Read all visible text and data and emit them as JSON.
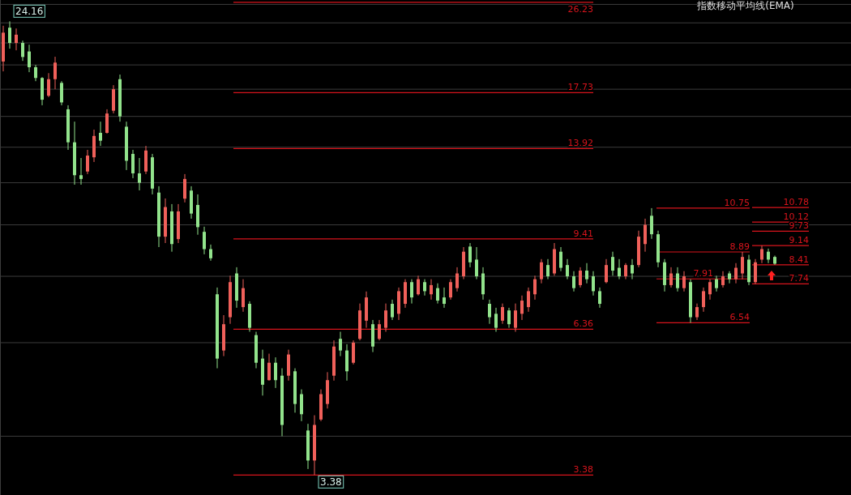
{
  "chart_data": {
    "type": "candlestick",
    "title": "指数移动平均线(EMA)",
    "categories": [
      null,
      null,
      null,
      null,
      null,
      null,
      null,
      null,
      null,
      null,
      null,
      null,
      null,
      null,
      null,
      null,
      null,
      null,
      null,
      null,
      null,
      null,
      null,
      null,
      null,
      null,
      null,
      null,
      null,
      null,
      null,
      null,
      null,
      null,
      null,
      null,
      null,
      null,
      null,
      null,
      null,
      null,
      null,
      null,
      null,
      null,
      null,
      null,
      null,
      null,
      null,
      null,
      null,
      null,
      null,
      null,
      null,
      null,
      null,
      null,
      null,
      null,
      null,
      null,
      null,
      null,
      null,
      null,
      null,
      null,
      null,
      null,
      null,
      null,
      null,
      null,
      null,
      null,
      null,
      null,
      null,
      null,
      null,
      null,
      null,
      null,
      null,
      null,
      null,
      null,
      null,
      null,
      null,
      null,
      null,
      null,
      null,
      null,
      null,
      null,
      null,
      null,
      null,
      null,
      null,
      null,
      null,
      null,
      null,
      null,
      null,
      null,
      null,
      null,
      null,
      null,
      null,
      null,
      null,
      null
    ],
    "ohlc": [
      [
        20.3,
        23.7,
        19.45,
        23.0
      ],
      [
        23.5,
        24.16,
        21.46,
        22.0
      ],
      [
        22.0,
        23.42,
        21.31,
        22.8
      ],
      [
        22.0,
        22.22,
        20.35,
        20.7
      ],
      [
        21.2,
        21.83,
        19.38,
        19.8
      ],
      [
        19.8,
        20.0,
        18.64,
        18.9
      ],
      [
        18.9,
        18.97,
        16.79,
        17.2
      ],
      [
        17.5,
        19.3,
        17.39,
        18.8
      ],
      [
        18.8,
        20.72,
        18.0,
        20.2
      ],
      [
        18.5,
        18.64,
        16.79,
        17.0
      ],
      [
        16.5,
        16.79,
        13.84,
        14.3
      ],
      [
        14.3,
        15.64,
        11.9,
        12.4
      ],
      [
        12.4,
        13.36,
        11.9,
        12.2
      ],
      [
        12.6,
        13.84,
        12.46,
        13.5
      ],
      [
        13.4,
        15.11,
        13.13,
        14.7
      ],
      [
        14.9,
        15.64,
        14.08,
        14.4
      ],
      [
        14.9,
        16.5,
        14.85,
        16.2
      ],
      [
        16.4,
        18.32,
        16.21,
        18.0
      ],
      [
        18.8,
        19.18,
        15.64,
        16.0
      ],
      [
        15.3,
        15.64,
        12.68,
        13.2
      ],
      [
        13.6,
        13.84,
        12.24,
        12.5
      ],
      [
        12.5,
        13.36,
        11.61,
        12.0
      ],
      [
        12.6,
        14.08,
        12.46,
        13.8
      ],
      [
        13.4,
        13.6,
        11.41,
        11.7
      ],
      [
        11.5,
        11.82,
        9.08,
        9.5
      ],
      [
        9.5,
        11.21,
        9.24,
        10.8
      ],
      [
        10.6,
        10.94,
        8.9,
        9.2
      ],
      [
        9.4,
        10.94,
        9.24,
        10.6
      ],
      [
        11.2,
        12.46,
        11.02,
        12.2
      ],
      [
        11.6,
        11.82,
        10.27,
        10.5
      ],
      [
        10.9,
        11.41,
        9.58,
        9.9
      ],
      [
        9.7,
        9.92,
        8.8,
        9.0
      ],
      [
        9.0,
        9.18,
        8.56,
        8.65
      ],
      [
        7.4,
        7.62,
        5.37,
        5.6
      ],
      [
        5.8,
        6.76,
        5.66,
        6.5
      ],
      [
        6.7,
        8.02,
        6.51,
        7.8
      ],
      [
        8.1,
        8.32,
        6.98,
        7.2
      ],
      [
        7.0,
        7.9,
        6.86,
        7.6
      ],
      [
        7.1,
        7.18,
        6.29,
        6.4
      ],
      [
        6.2,
        6.29,
        5.37,
        5.5
      ],
      [
        5.6,
        5.82,
        4.77,
        5.0
      ],
      [
        5.1,
        5.72,
        5.09,
        5.5
      ],
      [
        5.5,
        5.63,
        4.93,
        5.1
      ],
      [
        5.2,
        5.37,
        4.0,
        4.2
      ],
      [
        5.2,
        5.82,
        5.09,
        5.7
      ],
      [
        5.3,
        5.37,
        4.43,
        4.6
      ],
      [
        4.8,
        4.9,
        4.27,
        4.4
      ],
      [
        4.1,
        4.22,
        3.47,
        3.6
      ],
      [
        3.6,
        4.38,
        3.38,
        4.2
      ],
      [
        4.3,
        4.9,
        4.27,
        4.8
      ],
      [
        4.6,
        5.28,
        4.51,
        5.1
      ],
      [
        5.2,
        6.06,
        5.09,
        5.9
      ],
      [
        6.1,
        6.29,
        5.66,
        5.8
      ],
      [
        5.8,
        5.96,
        5.09,
        5.3
      ],
      [
        5.5,
        6.06,
        5.46,
        6.0
      ],
      [
        6.1,
        7.11,
        6.06,
        6.9
      ],
      [
        6.6,
        7.49,
        6.4,
        7.3
      ],
      [
        6.5,
        6.62,
        5.76,
        5.9
      ],
      [
        6.1,
        6.62,
        6.06,
        6.5
      ],
      [
        6.4,
        7.11,
        6.29,
        6.9
      ],
      [
        7.1,
        7.23,
        6.62,
        6.7
      ],
      [
        6.8,
        7.62,
        6.62,
        7.5
      ],
      [
        7.1,
        7.9,
        6.98,
        7.8
      ],
      [
        7.8,
        7.9,
        7.11,
        7.3
      ],
      [
        7.4,
        8.02,
        7.36,
        7.9
      ],
      [
        7.8,
        7.9,
        7.36,
        7.5
      ],
      [
        7.4,
        7.9,
        7.23,
        7.7
      ],
      [
        7.6,
        7.76,
        7.11,
        7.2
      ],
      [
        7.3,
        7.62,
        6.98,
        7.1
      ],
      [
        7.3,
        7.9,
        7.23,
        7.8
      ],
      [
        7.6,
        8.32,
        7.49,
        8.1
      ],
      [
        8.0,
        9.08,
        7.9,
        8.9
      ],
      [
        9.1,
        9.24,
        8.32,
        8.5
      ],
      [
        8.6,
        9.08,
        7.9,
        8.0
      ],
      [
        8.1,
        8.32,
        7.23,
        7.4
      ],
      [
        7.1,
        7.23,
        6.51,
        6.7
      ],
      [
        6.8,
        6.98,
        6.29,
        6.4
      ],
      [
        6.6,
        7.11,
        6.51,
        7.0
      ],
      [
        6.9,
        6.98,
        6.4,
        6.5
      ],
      [
        6.4,
        7.11,
        6.29,
        6.9
      ],
      [
        6.8,
        7.36,
        6.62,
        7.2
      ],
      [
        7.0,
        7.62,
        6.86,
        7.5
      ],
      [
        7.4,
        8.02,
        7.23,
        7.9
      ],
      [
        7.9,
        8.62,
        7.76,
        8.5
      ],
      [
        8.4,
        8.62,
        7.9,
        8.0
      ],
      [
        8.1,
        9.24,
        8.02,
        9.0
      ],
      [
        8.9,
        9.08,
        8.18,
        8.3
      ],
      [
        8.4,
        8.62,
        7.9,
        8.0
      ],
      [
        8.0,
        8.18,
        7.49,
        7.6
      ],
      [
        7.7,
        8.32,
        7.62,
        8.2
      ],
      [
        8.2,
        8.47,
        7.76,
        7.9
      ],
      [
        8.0,
        8.18,
        7.36,
        7.5
      ],
      [
        7.5,
        7.62,
        6.98,
        7.1
      ],
      [
        7.8,
        8.62,
        7.76,
        8.4
      ],
      [
        8.7,
        8.9,
        8.02,
        8.2
      ],
      [
        8.3,
        8.62,
        7.9,
        8.0
      ],
      [
        8.0,
        8.47,
        7.9,
        8.4
      ],
      [
        8.4,
        8.62,
        7.9,
        8.1
      ],
      [
        8.4,
        9.75,
        8.32,
        9.5
      ],
      [
        9.2,
        10.27,
        8.9,
        10.0
      ],
      [
        10.4,
        10.75,
        9.41,
        9.6
      ],
      [
        9.6,
        9.75,
        8.32,
        8.5
      ],
      [
        8.5,
        8.62,
        7.49,
        7.7
      ],
      [
        7.7,
        8.32,
        7.62,
        8.1
      ],
      [
        8.1,
        8.32,
        7.49,
        7.6
      ],
      [
        7.6,
        8.18,
        7.49,
        8.0
      ],
      [
        7.8,
        7.9,
        6.54,
        6.7
      ],
      [
        6.7,
        7.11,
        6.62,
        7.0
      ],
      [
        7.0,
        7.62,
        6.86,
        7.5
      ],
      [
        7.4,
        7.9,
        7.23,
        7.8
      ],
      [
        7.9,
        8.02,
        7.49,
        7.6
      ],
      [
        7.7,
        8.18,
        7.62,
        8.0
      ],
      [
        8.1,
        8.18,
        7.76,
        7.9
      ],
      [
        7.9,
        8.47,
        7.76,
        8.3
      ],
      [
        8.1,
        8.89,
        7.9,
        8.7
      ],
      [
        8.6,
        8.78,
        7.7,
        7.8
      ],
      [
        7.8,
        8.62,
        7.74,
        8.5
      ],
      [
        8.6,
        9.14,
        8.47,
        9.0
      ],
      [
        8.9,
        9.02,
        8.47,
        8.6
      ],
      [
        8.7,
        8.75,
        8.41,
        8.45
      ]
    ],
    "yticks": [
      {
        "value": 4,
        "label": null
      },
      {
        "value": 6,
        "label": null
      },
      {
        "value": 8,
        "label": null
      },
      {
        "value": 10,
        "label": null
      },
      {
        "value": 12,
        "label": null
      },
      {
        "value": 14,
        "label": null
      },
      {
        "value": 16,
        "label": null
      },
      {
        "value": 18,
        "label": null
      },
      {
        "value": 20,
        "label": null
      },
      {
        "value": 22,
        "label": null
      },
      {
        "value": 24,
        "label": null
      },
      {
        "value": 26,
        "label": null
      }
    ],
    "ylim": [
      3.1,
      26.5
    ],
    "log": "y",
    "grid": "y",
    "tick_labels": false,
    "ref_lines": [
      {
        "axis": "y",
        "value": 26.23,
        "label": "26.23",
        "color": "#d8141c"
      },
      {
        "axis": "y",
        "value": 17.73,
        "label": "17.73",
        "color": "#d8141c"
      },
      {
        "axis": "y",
        "value": 13.92,
        "label": "13.92",
        "color": "#d8141c"
      },
      {
        "axis": "y",
        "value": 9.41,
        "label": "9.41",
        "color": "#d8141c"
      },
      {
        "axis": "y",
        "value": 6.36,
        "label": "6.36",
        "color": "#d8141c"
      },
      {
        "axis": "y",
        "value": 3.38,
        "label": "3.38",
        "color": "#d8141c"
      },
      {
        "axis": "y",
        "value": 10.75,
        "label": "10.75",
        "color": "#d8141c"
      },
      {
        "axis": "y",
        "value": 8.89,
        "label": "8.89",
        "color": "#d8141c"
      },
      {
        "axis": "y",
        "value": 7.91,
        "label": "7.91",
        "color": "#d8141c"
      },
      {
        "axis": "y",
        "value": 6.54,
        "label": "6.54",
        "color": "#d8141c"
      },
      {
        "axis": "y",
        "value": 10.78,
        "label": "10.78",
        "color": "#d8141c"
      },
      {
        "axis": "y",
        "value": 10.12,
        "label": "10.12",
        "color": "#d8141c"
      },
      {
        "axis": "y",
        "value": 9.73,
        "label": "9.73",
        "color": "#d8141c"
      },
      {
        "axis": "y",
        "value": 9.14,
        "label": "9.14",
        "color": "#d8141c"
      },
      {
        "axis": "y",
        "value": 8.41,
        "label": "8.41",
        "color": "#d8141c"
      },
      {
        "axis": "y",
        "value": 7.74,
        "label": "7.74",
        "color": "#d8141c"
      }
    ],
    "annotations": [
      "24.16",
      "3.38"
    ]
  }
}
